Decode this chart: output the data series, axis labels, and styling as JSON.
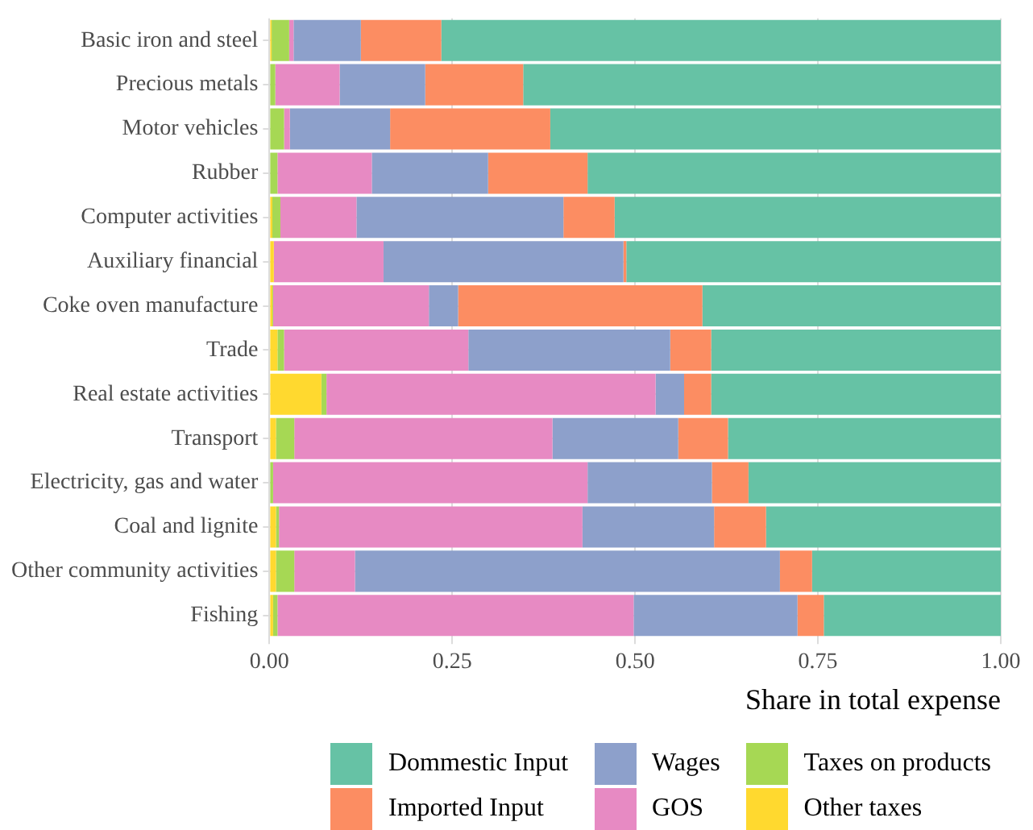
{
  "chart_data": {
    "type": "bar",
    "orientation": "horizontal",
    "stacked": true,
    "xlabel": "Share in total expense",
    "legend": "bottom",
    "grid": true,
    "categories": [
      "Basic iron and steel",
      "Precious metals",
      "Motor vehicles",
      "Rubber",
      "Computer activities",
      "Auxiliary financial",
      "Coke oven manufacture",
      "Trade",
      "Real estate activities",
      "Transport",
      "Electricity, gas and water",
      "Coal and lignite",
      "Other community activities",
      "Fishing"
    ],
    "xlim": [
      0,
      1
    ],
    "xticks": [
      {
        "value": 0,
        "label": "0.00"
      },
      {
        "value": 0.25,
        "label": "0.25"
      },
      {
        "value": 0.5,
        "label": "0.50"
      },
      {
        "value": 0.75,
        "label": "0.75"
      },
      {
        "value": 1,
        "label": "1.00"
      }
    ],
    "series": [
      {
        "name": "Other taxes",
        "color": "#ffd92f",
        "values": [
          0.003,
          0,
          0,
          0,
          0.004,
          0.006,
          0.004,
          0.011,
          0.071,
          0.009,
          0,
          0.009,
          0.009,
          0.005
        ]
      },
      {
        "name": "Taxes on products",
        "color": "#a6d854",
        "values": [
          0.024,
          0.008,
          0.02,
          0.011,
          0.011,
          0,
          0.001,
          0.009,
          0.007,
          0.025,
          0.005,
          0.004,
          0.025,
          0.006
        ]
      },
      {
        "name": "GOS",
        "color": "#e78ac3",
        "values": [
          0.006,
          0.088,
          0.008,
          0.129,
          0.104,
          0.15,
          0.213,
          0.252,
          0.45,
          0.353,
          0.43,
          0.415,
          0.083,
          0.487
        ]
      },
      {
        "name": "Wages",
        "color": "#8da0cb",
        "values": [
          0.092,
          0.117,
          0.137,
          0.159,
          0.283,
          0.328,
          0.04,
          0.276,
          0.039,
          0.172,
          0.17,
          0.18,
          0.581,
          0.224
        ]
      },
      {
        "name": "Imported Input",
        "color": "#fc8d62",
        "values": [
          0.11,
          0.134,
          0.219,
          0.136,
          0.07,
          0.004,
          0.334,
          0.056,
          0.037,
          0.068,
          0.05,
          0.071,
          0.044,
          0.036
        ]
      },
      {
        "name": "Dommestic Input",
        "color": "#66c2a5",
        "values": [
          0.765,
          0.653,
          0.616,
          0.565,
          0.528,
          0.512,
          0.408,
          0.396,
          0.396,
          0.373,
          0.345,
          0.321,
          0.258,
          0.242
        ]
      }
    ]
  }
}
